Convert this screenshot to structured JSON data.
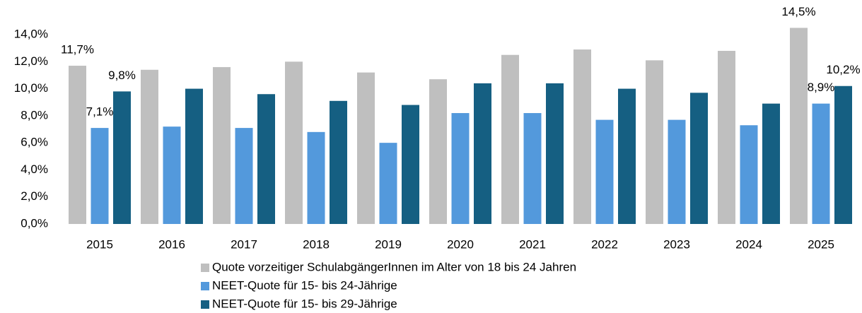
{
  "chart_data": {
    "type": "bar",
    "categories": [
      "2015",
      "2016",
      "2017",
      "2018",
      "2019",
      "2020",
      "2021",
      "2022",
      "2023",
      "2024",
      "2025"
    ],
    "series": [
      {
        "name": "Quote vorzeitiger SchulabgängerInnen im Alter von 18 bis 24 Jahren",
        "color": "#bfbfbf",
        "values": [
          11.7,
          11.4,
          11.6,
          12.0,
          11.2,
          10.7,
          12.5,
          12.9,
          12.1,
          12.8,
          14.5
        ],
        "value_labels": [
          "11,7%",
          null,
          null,
          null,
          null,
          null,
          null,
          null,
          null,
          null,
          "14,5%"
        ]
      },
      {
        "name": "NEET-Quote für 15- bis 24-Jährige",
        "color": "#5399dc",
        "values": [
          7.1,
          7.2,
          7.1,
          6.8,
          6.0,
          8.2,
          8.2,
          7.7,
          7.7,
          7.3,
          8.9
        ],
        "value_labels": [
          "7,1%",
          null,
          null,
          null,
          null,
          null,
          null,
          null,
          null,
          null,
          "8,9%"
        ]
      },
      {
        "name": "NEET-Quote für 15- bis 29-Jährige",
        "color": "#155f82",
        "values": [
          9.8,
          10.0,
          9.6,
          9.1,
          8.8,
          10.4,
          10.4,
          10.0,
          9.7,
          8.9,
          10.2
        ],
        "value_labels": [
          "9,8%",
          null,
          null,
          null,
          null,
          null,
          null,
          null,
          null,
          null,
          "10,2%"
        ]
      }
    ],
    "ylim": [
      0,
      14
    ],
    "yticks": [
      {
        "value": 0,
        "label": "0,0%"
      },
      {
        "value": 2,
        "label": "2,0%"
      },
      {
        "value": 4,
        "label": "4,0%"
      },
      {
        "value": 6,
        "label": "6,0%"
      },
      {
        "value": 8,
        "label": "8,0%"
      },
      {
        "value": 10,
        "label": "10,0%"
      },
      {
        "value": 12,
        "label": "12,0%"
      },
      {
        "value": 14,
        "label": "14,0%"
      }
    ],
    "grid": false,
    "legend": "bottom"
  }
}
